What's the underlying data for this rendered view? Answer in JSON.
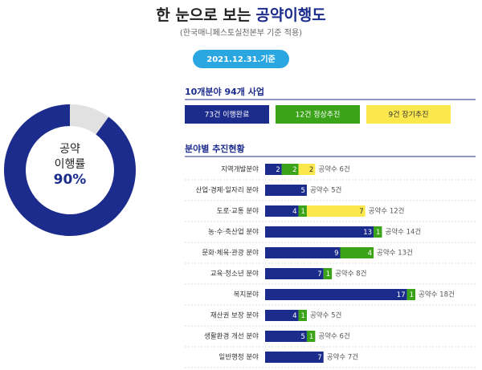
{
  "header": {
    "title_plain": "한 눈으로 보는",
    "title_accent": "공약이행도",
    "subtitle": "(한국매니페스토실천본부 기준 적용)",
    "date_badge": "2021.12.31.기준"
  },
  "chart_data": [
    {
      "type": "pie",
      "values": [
        90,
        10
      ],
      "value_labels": [
        "90%",
        null
      ],
      "colors": [
        "#1c2c8c",
        "#e1e1e1"
      ],
      "center_text": [
        "공약",
        "이행률"
      ]
    },
    {
      "type": "bar",
      "orientation": "horizontal",
      "stacked": true,
      "subtitle": "10개분야 94개 사업",
      "title": "분야별 추진현황",
      "categories": [
        "지역개발분야",
        "산업·경제·일자리 분야",
        "도로·교통 분야",
        "농·수·축산업 분야",
        "문화·체육·관광 분야",
        "교육·청소년 분야",
        "복지분야",
        "재산권 보장 분야",
        "생활환경 개선 분야",
        "일반행정 분야"
      ],
      "series": [
        {
          "name": "73건 이행완료",
          "color": "#1c2c8c",
          "values": [
            2,
            5,
            4,
            13,
            9,
            7,
            17,
            4,
            5,
            7
          ]
        },
        {
          "name": "12건 정상추진",
          "color": "#3aa317",
          "values": [
            2,
            null,
            1,
            1,
            4,
            1,
            1,
            1,
            1,
            null
          ]
        },
        {
          "name": "9건 장기추진",
          "color": "#fbe84d",
          "values": [
            2,
            null,
            7,
            null,
            null,
            null,
            null,
            null,
            null,
            null
          ]
        }
      ],
      "total_labels": [
        "공약수 6건",
        "공약수 5건",
        "공약수 12건",
        "공약수 14건",
        "공약수 13건",
        "공약수 8건",
        "공약수 18건",
        "공약수 5건",
        "공약수 6건",
        "공약수 7건"
      ],
      "xlim": [
        0,
        18
      ]
    }
  ]
}
